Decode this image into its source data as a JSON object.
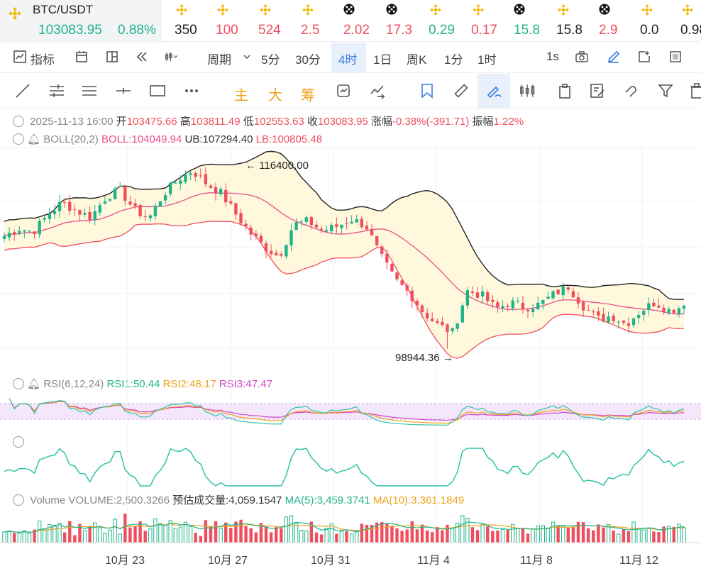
{
  "ticker": {
    "symbol": "BTC/USDT",
    "price": "103083.95",
    "change": "0.88%",
    "items": [
      {
        "value": "350",
        "dir": "nt",
        "icon": "binance"
      },
      {
        "value": "100",
        "dir": "dn",
        "icon": "binance"
      },
      {
        "value": "524",
        "dir": "dn",
        "icon": "binance"
      },
      {
        "value": "2.5",
        "dir": "dn",
        "icon": "binance"
      },
      {
        "value": "2.02",
        "dir": "dn",
        "icon": "okx"
      },
      {
        "value": "17.3",
        "dir": "dn",
        "icon": "okx"
      },
      {
        "value": "0.29",
        "dir": "up",
        "icon": "binance"
      },
      {
        "value": "0.17",
        "dir": "dn",
        "icon": "binance"
      },
      {
        "value": "15.8",
        "dir": "up",
        "icon": "okx"
      },
      {
        "value": "15.8",
        "dir": "nt",
        "icon": "binance"
      },
      {
        "value": "2.9",
        "dir": "dn",
        "icon": "okx"
      },
      {
        "value": "0.0",
        "dir": "nt",
        "icon": "binance"
      },
      {
        "value": "0.98",
        "dir": "nt",
        "icon": "binance"
      }
    ]
  },
  "toolbar": {
    "indicators": "指标",
    "period": "周期",
    "timeframes": [
      "5分",
      "30分",
      "4时",
      "1日",
      "周K",
      "1分",
      "1时"
    ],
    "active_timeframe": "4时",
    "refresh": "1s"
  },
  "drawing_tools": {
    "main": "主",
    "big": "大",
    "chips": "筹"
  },
  "ohlc": {
    "date": "2025-11-13 16:00",
    "open_label": "开",
    "open": "103475.66",
    "high_label": "高",
    "high": "103811.49",
    "low_label": "低",
    "low": "102553.63",
    "close_label": "收",
    "close": "103083.95",
    "change_label": "涨幅",
    "change": "-0.38%(-391.71)",
    "amplitude_label": "振幅",
    "amplitude": "1.22%"
  },
  "boll": {
    "name": "BOLL(20,2)",
    "mid": "BOLL:104049.94",
    "ub": "UB:107294.40",
    "lb": "LB:100805.48"
  },
  "rsi": {
    "name": "RSI(6,12,24)",
    "rsi1": "RSI1:50.44",
    "rsi2": "RSI2:48.17",
    "rsi3": "RSI3:47.47"
  },
  "volume": {
    "name": "Volume",
    "volume": "VOLUME:2,500.3266",
    "estimate": "预估成交量:4,059.1547",
    "ma5": "MA(5):3,459.3741",
    "ma10": "MA(10):3,361.1849"
  },
  "annotations": {
    "high": "116400.00",
    "low": "98944.36"
  },
  "colors": {
    "up": "#1fb38a",
    "down": "#ef4e5e",
    "boll_mid": "#e84e8c",
    "boll_band": "#fff8dc",
    "ma5": "#1fb38a",
    "ma10": "#f0a21c"
  },
  "chart_data": {
    "type": "candlestick",
    "x_labels": [
      "10月 23",
      "10月 27",
      "10月 31",
      "11月 4",
      "11月 8",
      "11月 12"
    ],
    "candles_summary": {
      "count": 136,
      "close_path": [
        109800,
        110500,
        110200,
        111800,
        113000,
        112200,
        111600,
        113500,
        114200,
        112300,
        111500,
        113800,
        115200,
        116100,
        114800,
        113900,
        111900,
        110100,
        108700,
        107800,
        110900,
        111200,
        110300,
        110700,
        111400,
        110800,
        107900,
        105600,
        104300,
        102400,
        101200,
        100500,
        104500,
        104100,
        102800,
        103400,
        102900,
        103200,
        104200,
        104900,
        103100,
        101800,
        102100,
        101300,
        102600,
        103400,
        102600,
        103084
      ],
      "high": 116400.0,
      "low": 98944.36
    },
    "ylim": [
      97000,
      118500
    ]
  }
}
